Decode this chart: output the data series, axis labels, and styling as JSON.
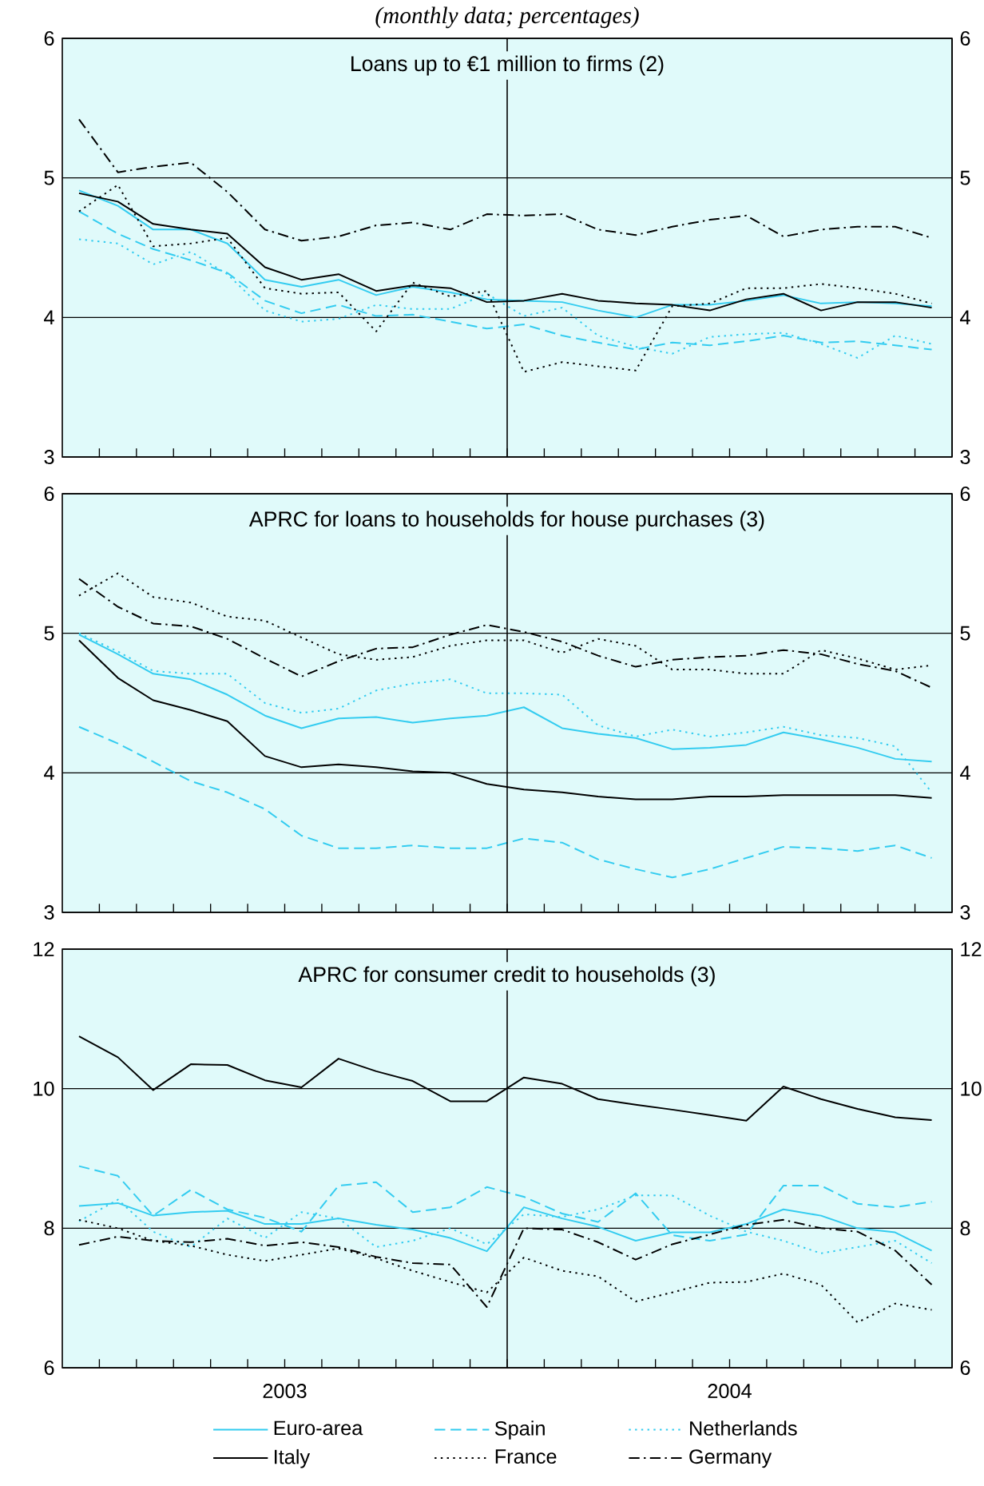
{
  "chart_data": [
    {
      "type": "line",
      "subtitle": "(monthly data; percentages)",
      "title": "Loans up to  €1 million to firms (2)",
      "x": [
        "2003-01-15",
        "2003-02-15",
        "2003-03-15",
        "2003-04-15",
        "2003-05-15",
        "2003-06-15",
        "2003-07-15",
        "2003-08-15",
        "2003-09-15",
        "2003-10-15",
        "2003-11-15",
        "2003-12-15",
        "2004-01-15",
        "2004-02-15",
        "2004-03-15",
        "2004-04-15",
        "2004-05-15",
        "2004-06-15",
        "2004-07-15",
        "2004-08-15",
        "2004-09-15",
        "2004-10-15",
        "2004-11-15",
        "2004-12-15"
      ],
      "xlim": [
        "2003-01-01",
        "2005-01-01"
      ],
      "xticks": [
        {
          "value": "2003-02-01",
          "label": null
        },
        {
          "value": "2003-03-01",
          "label": null
        },
        {
          "value": "2003-04-01",
          "label": null
        },
        {
          "value": "2003-05-01",
          "label": null
        },
        {
          "value": "2003-06-01",
          "label": null
        },
        {
          "value": "2003-07-01",
          "label": null
        },
        {
          "value": "2003-08-01",
          "label": null
        },
        {
          "value": "2003-09-01",
          "label": null
        },
        {
          "value": "2003-10-01",
          "label": null
        },
        {
          "value": "2003-11-01",
          "label": null
        },
        {
          "value": "2003-12-01",
          "label": null
        },
        {
          "value": "2004-01-01",
          "label": null
        },
        {
          "value": "2004-02-01",
          "label": null
        },
        {
          "value": "2004-03-01",
          "label": null
        },
        {
          "value": "2004-04-01",
          "label": null
        },
        {
          "value": "2004-05-01",
          "label": null
        },
        {
          "value": "2004-06-01",
          "label": null
        },
        {
          "value": "2004-07-01",
          "label": null
        },
        {
          "value": "2004-08-01",
          "label": null
        },
        {
          "value": "2004-09-01",
          "label": null
        },
        {
          "value": "2004-10-01",
          "label": null
        },
        {
          "value": "2004-11-01",
          "label": null
        },
        {
          "value": "2004-12-01",
          "label": null
        }
      ],
      "ylim": [
        3,
        6
      ],
      "yticks": [
        3,
        4,
        5,
        6
      ],
      "y2lim": [
        3,
        6
      ],
      "y2ticks": [
        3,
        4,
        5,
        6
      ],
      "grid": "y",
      "tick_labels": "y",
      "ref_lines": [
        {
          "axis": "x",
          "value": "2004-01-01"
        }
      ],
      "series": [
        {
          "color": "#33ccf0",
          "line_style": "solid",
          "values": [
            4.91,
            4.8,
            4.63,
            4.63,
            4.53,
            4.27,
            4.22,
            4.27,
            4.16,
            4.22,
            4.18,
            4.13,
            4.12,
            4.11,
            4.05,
            4.0,
            4.09,
            4.09,
            4.12,
            4.16,
            4.1,
            4.11,
            4.1,
            4.08
          ]
        },
        {
          "color": "#33ccf0",
          "line_style": "dashed",
          "values": [
            4.76,
            4.6,
            4.49,
            4.41,
            4.32,
            4.12,
            4.03,
            4.09,
            4.01,
            4.02,
            3.97,
            3.92,
            3.95,
            3.87,
            3.82,
            3.77,
            3.82,
            3.8,
            3.83,
            3.87,
            3.82,
            3.83,
            3.8,
            3.77
          ]
        },
        {
          "color": "#33ccf0",
          "line_style": "dotted",
          "values": [
            4.56,
            4.53,
            4.38,
            4.47,
            4.31,
            4.05,
            3.97,
            3.99,
            4.09,
            4.06,
            4.06,
            4.17,
            4.01,
            4.07,
            3.87,
            3.79,
            3.74,
            3.86,
            3.88,
            3.89,
            3.81,
            3.71,
            3.87,
            3.81
          ]
        },
        {
          "color": "#000000",
          "line_style": "solid",
          "values": [
            4.89,
            4.83,
            4.67,
            4.63,
            4.6,
            4.36,
            4.27,
            4.31,
            4.19,
            4.23,
            4.21,
            4.11,
            4.12,
            4.17,
            4.12,
            4.1,
            4.09,
            4.05,
            4.13,
            4.17,
            4.05,
            4.11,
            4.11,
            4.07
          ]
        },
        {
          "color": "#000000",
          "line_style": "dotted",
          "values": [
            4.76,
            4.95,
            4.51,
            4.53,
            4.57,
            4.21,
            4.17,
            4.18,
            3.9,
            4.25,
            4.15,
            4.19,
            3.61,
            3.68,
            3.65,
            3.62,
            4.08,
            4.1,
            4.21,
            4.21,
            4.24,
            4.21,
            4.17,
            4.1
          ]
        },
        {
          "color": "#000000",
          "line_style": "dashdot",
          "values": [
            5.42,
            5.04,
            5.08,
            5.11,
            4.9,
            4.63,
            4.55,
            4.58,
            4.66,
            4.68,
            4.63,
            4.74,
            4.73,
            4.74,
            4.63,
            4.59,
            4.65,
            4.7,
            4.73,
            4.58,
            4.63,
            4.65,
            4.65,
            4.57
          ]
        }
      ]
    },
    {
      "type": "line",
      "title": "APRC for loans to households for house purchases (3)",
      "x": [
        "2003-01-15",
        "2003-02-15",
        "2003-03-15",
        "2003-04-15",
        "2003-05-15",
        "2003-06-15",
        "2003-07-15",
        "2003-08-15",
        "2003-09-15",
        "2003-10-15",
        "2003-11-15",
        "2003-12-15",
        "2004-01-15",
        "2004-02-15",
        "2004-03-15",
        "2004-04-15",
        "2004-05-15",
        "2004-06-15",
        "2004-07-15",
        "2004-08-15",
        "2004-09-15",
        "2004-10-15",
        "2004-11-15",
        "2004-12-15"
      ],
      "xlim": [
        "2003-01-01",
        "2005-01-01"
      ],
      "xticks": [
        {
          "value": "2003-02-01",
          "label": null
        },
        {
          "value": "2003-03-01",
          "label": null
        },
        {
          "value": "2003-04-01",
          "label": null
        },
        {
          "value": "2003-05-01",
          "label": null
        },
        {
          "value": "2003-06-01",
          "label": null
        },
        {
          "value": "2003-07-01",
          "label": null
        },
        {
          "value": "2003-08-01",
          "label": null
        },
        {
          "value": "2003-09-01",
          "label": null
        },
        {
          "value": "2003-10-01",
          "label": null
        },
        {
          "value": "2003-11-01",
          "label": null
        },
        {
          "value": "2003-12-01",
          "label": null
        },
        {
          "value": "2004-01-01",
          "label": null
        },
        {
          "value": "2004-02-01",
          "label": null
        },
        {
          "value": "2004-03-01",
          "label": null
        },
        {
          "value": "2004-04-01",
          "label": null
        },
        {
          "value": "2004-05-01",
          "label": null
        },
        {
          "value": "2004-06-01",
          "label": null
        },
        {
          "value": "2004-07-01",
          "label": null
        },
        {
          "value": "2004-08-01",
          "label": null
        },
        {
          "value": "2004-09-01",
          "label": null
        },
        {
          "value": "2004-10-01",
          "label": null
        },
        {
          "value": "2004-11-01",
          "label": null
        },
        {
          "value": "2004-12-01",
          "label": null
        }
      ],
      "ylim": [
        3,
        6
      ],
      "yticks": [
        3,
        4,
        5,
        6
      ],
      "y2lim": [
        3,
        6
      ],
      "y2ticks": [
        3,
        4,
        5,
        6
      ],
      "grid": "y",
      "tick_labels": "y",
      "ref_lines": [
        {
          "axis": "x",
          "value": "2004-01-01"
        }
      ],
      "series": [
        {
          "color": "#33ccf0",
          "line_style": "solid",
          "values": [
            4.99,
            4.85,
            4.71,
            4.67,
            4.56,
            4.41,
            4.32,
            4.39,
            4.4,
            4.36,
            4.39,
            4.41,
            4.47,
            4.32,
            4.28,
            4.25,
            4.17,
            4.18,
            4.2,
            4.29,
            4.24,
            4.18,
            4.1,
            4.08
          ]
        },
        {
          "color": "#33ccf0",
          "line_style": "dashed",
          "values": [
            4.33,
            4.21,
            4.08,
            3.94,
            3.86,
            3.74,
            3.55,
            3.46,
            3.46,
            3.48,
            3.46,
            3.46,
            3.53,
            3.5,
            3.38,
            3.31,
            3.25,
            3.31,
            3.39,
            3.47,
            3.46,
            3.44,
            3.48,
            3.39
          ]
        },
        {
          "color": "#33ccf0",
          "line_style": "dotted",
          "values": [
            5.0,
            4.87,
            4.73,
            4.71,
            4.71,
            4.5,
            4.43,
            4.46,
            4.59,
            4.64,
            4.67,
            4.57,
            4.57,
            4.56,
            4.34,
            4.26,
            4.31,
            4.26,
            4.29,
            4.33,
            4.27,
            4.25,
            4.19,
            3.86
          ]
        },
        {
          "color": "#000000",
          "line_style": "solid",
          "values": [
            4.95,
            4.68,
            4.52,
            4.45,
            4.37,
            4.12,
            4.04,
            4.06,
            4.04,
            4.01,
            4.0,
            3.92,
            3.88,
            3.86,
            3.83,
            3.81,
            3.81,
            3.83,
            3.83,
            3.84,
            3.84,
            3.84,
            3.84,
            3.82
          ]
        },
        {
          "color": "#000000",
          "line_style": "dotted",
          "values": [
            5.27,
            5.43,
            5.26,
            5.22,
            5.12,
            5.09,
            4.97,
            4.85,
            4.81,
            4.83,
            4.91,
            4.95,
            4.95,
            4.86,
            4.96,
            4.91,
            4.74,
            4.74,
            4.71,
            4.71,
            4.88,
            4.82,
            4.74,
            4.77
          ]
        },
        {
          "color": "#000000",
          "line_style": "dashdot",
          "values": [
            5.39,
            5.19,
            5.07,
            5.05,
            4.96,
            4.82,
            4.69,
            4.8,
            4.89,
            4.9,
            4.99,
            5.06,
            5.01,
            4.94,
            4.84,
            4.76,
            4.81,
            4.83,
            4.84,
            4.88,
            4.85,
            4.78,
            4.73,
            4.61
          ]
        }
      ]
    },
    {
      "type": "line",
      "title": "APRC for consumer credit to households (3)",
      "x": [
        "2003-01-15",
        "2003-02-15",
        "2003-03-15",
        "2003-04-15",
        "2003-05-15",
        "2003-06-15",
        "2003-07-15",
        "2003-08-15",
        "2003-09-15",
        "2003-10-15",
        "2003-11-15",
        "2003-12-15",
        "2004-01-15",
        "2004-02-15",
        "2004-03-15",
        "2004-04-15",
        "2004-05-15",
        "2004-06-15",
        "2004-07-15",
        "2004-08-15",
        "2004-09-15",
        "2004-10-15",
        "2004-11-15",
        "2004-12-15"
      ],
      "xlim": [
        "2003-01-01",
        "2005-01-01"
      ],
      "xticks": [
        {
          "value": "2003-02-01",
          "label": null
        },
        {
          "value": "2003-03-01",
          "label": null
        },
        {
          "value": "2003-04-01",
          "label": null
        },
        {
          "value": "2003-05-01",
          "label": null
        },
        {
          "value": "2003-06-01",
          "label": null
        },
        {
          "value": "2003-07-01",
          "label": "2003"
        },
        {
          "value": "2003-08-01",
          "label": null
        },
        {
          "value": "2003-09-01",
          "label": null
        },
        {
          "value": "2003-10-01",
          "label": null
        },
        {
          "value": "2003-11-01",
          "label": null
        },
        {
          "value": "2003-12-01",
          "label": null
        },
        {
          "value": "2004-01-01",
          "label": null
        },
        {
          "value": "2004-02-01",
          "label": null
        },
        {
          "value": "2004-03-01",
          "label": null
        },
        {
          "value": "2004-04-01",
          "label": null
        },
        {
          "value": "2004-05-01",
          "label": null
        },
        {
          "value": "2004-06-01",
          "label": null
        },
        {
          "value": "2004-07-01",
          "label": "2004"
        },
        {
          "value": "2004-08-01",
          "label": null
        },
        {
          "value": "2004-09-01",
          "label": null
        },
        {
          "value": "2004-10-01",
          "label": null
        },
        {
          "value": "2004-11-01",
          "label": null
        },
        {
          "value": "2004-12-01",
          "label": null
        }
      ],
      "ylim": [
        6,
        12
      ],
      "yticks": [
        6,
        8,
        10,
        12
      ],
      "y2lim": [
        6,
        12
      ],
      "y2ticks": [
        6,
        8,
        10,
        12
      ],
      "grid": "y",
      "legend": "bottom",
      "ref_lines": [
        {
          "axis": "x",
          "value": "2004-01-01"
        }
      ],
      "series": [
        {
          "name": "Euro-area",
          "color": "#33ccf0",
          "line_style": "solid",
          "values": [
            8.32,
            8.36,
            8.18,
            8.23,
            8.25,
            8.06,
            8.06,
            8.14,
            8.05,
            7.98,
            7.86,
            7.67,
            8.3,
            8.14,
            8.02,
            7.82,
            7.94,
            7.94,
            8.06,
            8.27,
            8.18,
            8.0,
            7.94,
            7.68
          ]
        },
        {
          "name": "Spain",
          "color": "#33ccf0",
          "line_style": "dashed",
          "values": [
            8.89,
            8.75,
            8.18,
            8.55,
            8.27,
            8.15,
            7.95,
            8.61,
            8.66,
            8.23,
            8.3,
            8.59,
            8.45,
            8.21,
            8.09,
            8.5,
            7.9,
            7.82,
            7.91,
            8.61,
            8.61,
            8.35,
            8.3,
            8.38
          ]
        },
        {
          "name": "Netherlands",
          "color": "#33ccf0",
          "line_style": "dotted",
          "values": [
            8.1,
            8.41,
            7.95,
            7.73,
            8.14,
            7.86,
            8.23,
            8.14,
            7.73,
            7.82,
            8.0,
            7.77,
            8.2,
            8.16,
            8.27,
            8.47,
            8.47,
            8.18,
            7.95,
            7.82,
            7.64,
            7.73,
            7.82,
            7.5
          ]
        },
        {
          "name": "Italy",
          "color": "#000000",
          "line_style": "solid",
          "values": [
            10.75,
            10.45,
            9.98,
            10.35,
            10.34,
            10.12,
            10.02,
            10.43,
            10.25,
            10.11,
            9.82,
            9.82,
            10.16,
            10.07,
            9.85,
            9.77,
            9.7,
            9.62,
            9.54,
            10.03,
            9.85,
            9.71,
            9.59,
            9.55
          ]
        },
        {
          "name": "France",
          "color": "#000000",
          "line_style": "dotted",
          "values": [
            8.12,
            8.0,
            7.82,
            7.75,
            7.62,
            7.53,
            7.62,
            7.71,
            7.57,
            7.39,
            7.23,
            7.08,
            7.58,
            7.39,
            7.31,
            6.95,
            7.08,
            7.22,
            7.23,
            7.35,
            7.19,
            6.65,
            6.92,
            6.83
          ]
        },
        {
          "name": "Germany",
          "color": "#000000",
          "line_style": "dashdot",
          "values": [
            7.76,
            7.88,
            7.82,
            7.8,
            7.85,
            7.75,
            7.8,
            7.73,
            7.59,
            7.5,
            7.48,
            6.87,
            8.0,
            7.98,
            7.8,
            7.55,
            7.77,
            7.91,
            8.05,
            8.12,
            8.0,
            7.95,
            7.68,
            7.19
          ]
        }
      ]
    }
  ]
}
